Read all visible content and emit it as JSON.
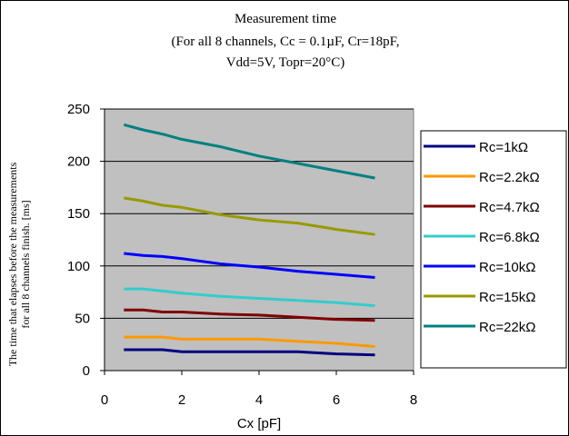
{
  "chart_data": {
    "type": "line",
    "title": "Measurement time",
    "subtitle_lines": [
      "(For all 8 channels, Cc = 0.1µF, Cr=18pF,",
      "Vdd=5V, Topr=20°C)"
    ],
    "ylabel_lines": [
      "The time that elapses before the measurements",
      "for all 8 channels finish. [ms]"
    ],
    "xlabel": "Cx [pF]",
    "xlim": [
      0,
      8
    ],
    "ylim": [
      0,
      250
    ],
    "xticks": [
      "0",
      "2",
      "4",
      "6",
      "8"
    ],
    "yticks": [
      "0",
      "50",
      "100",
      "150",
      "200",
      "250"
    ],
    "grid": "horizontal",
    "legend_position": "right",
    "plot_background": "#c0c0c0",
    "x": [
      0.5,
      1,
      1.5,
      2,
      3,
      4,
      5,
      6,
      7
    ],
    "series": [
      {
        "name": "Rc=1kΩ",
        "color": "#000080",
        "values": [
          20,
          20,
          20,
          18,
          18,
          18,
          18,
          16,
          15
        ]
      },
      {
        "name": "Rc=2.2kΩ",
        "color": "#ff9900",
        "values": [
          32,
          32,
          32,
          30,
          30,
          30,
          28,
          26,
          23
        ]
      },
      {
        "name": "Rc=4.7kΩ",
        "color": "#800000",
        "values": [
          58,
          58,
          56,
          56,
          54,
          53,
          51,
          49,
          48
        ]
      },
      {
        "name": "Rc=6.8kΩ",
        "color": "#33cccc",
        "values": [
          78,
          78,
          76,
          74,
          71,
          69,
          67,
          65,
          62
        ]
      },
      {
        "name": "Rc=10kΩ",
        "color": "#0000ff",
        "values": [
          112,
          110,
          109,
          107,
          102,
          99,
          95,
          92,
          89
        ]
      },
      {
        "name": "Rc=15kΩ",
        "color": "#999900",
        "values": [
          165,
          162,
          158,
          156,
          149,
          144,
          141,
          135,
          130
        ]
      },
      {
        "name": "Rc=22kΩ",
        "color": "#008080",
        "values": [
          235,
          230,
          226,
          221,
          214,
          205,
          198,
          191,
          184
        ]
      }
    ]
  }
}
